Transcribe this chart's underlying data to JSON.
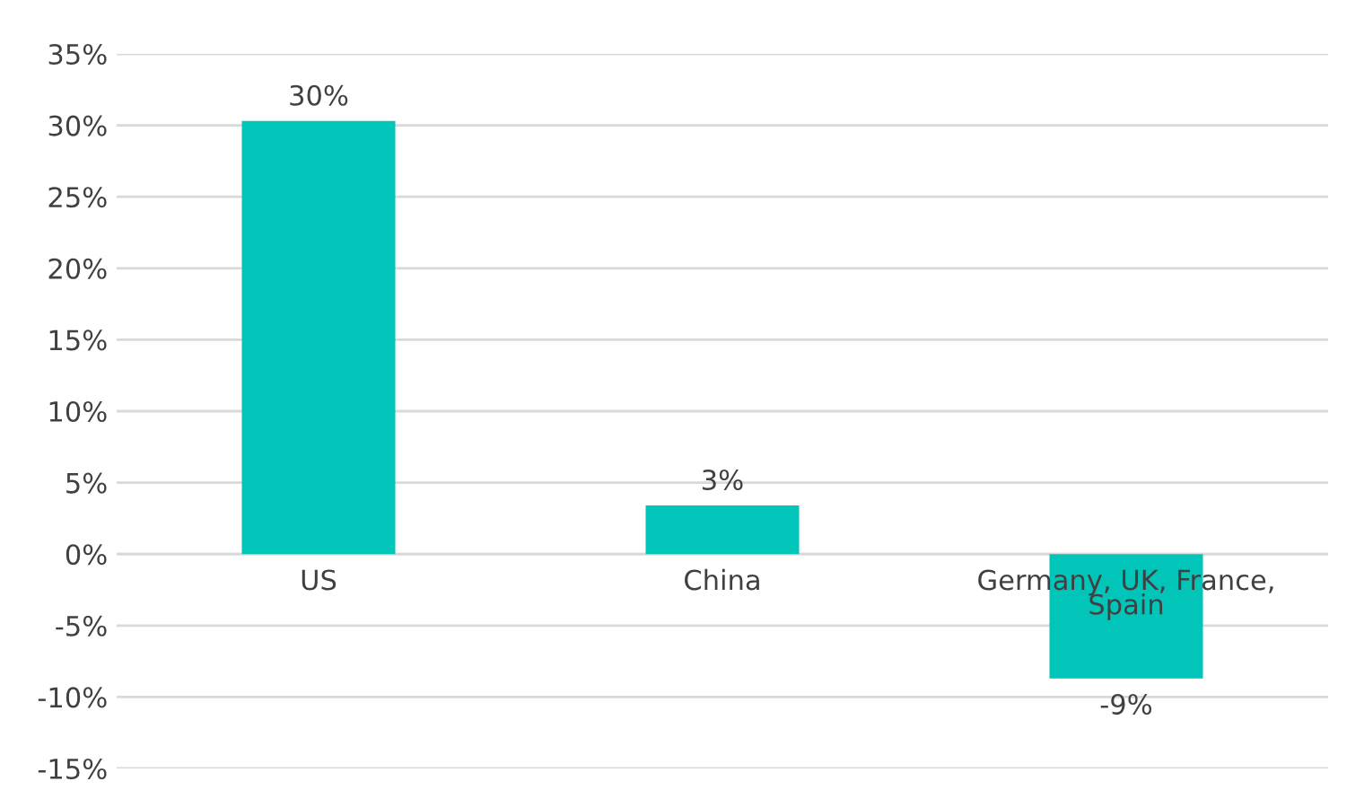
{
  "chart_data": {
    "type": "bar",
    "categories": [
      "US",
      "China",
      "Germany, UK, France,\nSpain"
    ],
    "values": [
      30.3,
      3.4,
      -8.7
    ],
    "value_labels": [
      "30%",
      "3%",
      "-9%"
    ],
    "color": "#00c5b8",
    "ylim": [
      -15,
      35
    ],
    "yticks": [
      {
        "value": -15,
        "label": "-15%"
      },
      {
        "value": -10,
        "label": "-10%"
      },
      {
        "value": -5,
        "label": "-5%"
      },
      {
        "value": 0,
        "label": "0%"
      },
      {
        "value": 5,
        "label": "5%"
      },
      {
        "value": 10,
        "label": "10%"
      },
      {
        "value": 15,
        "label": "15%"
      },
      {
        "value": 20,
        "label": "20%"
      },
      {
        "value": 25,
        "label": "25%"
      },
      {
        "value": 30,
        "label": "30%"
      },
      {
        "value": 35,
        "label": "35%"
      }
    ],
    "grid": "y",
    "legend": false
  }
}
